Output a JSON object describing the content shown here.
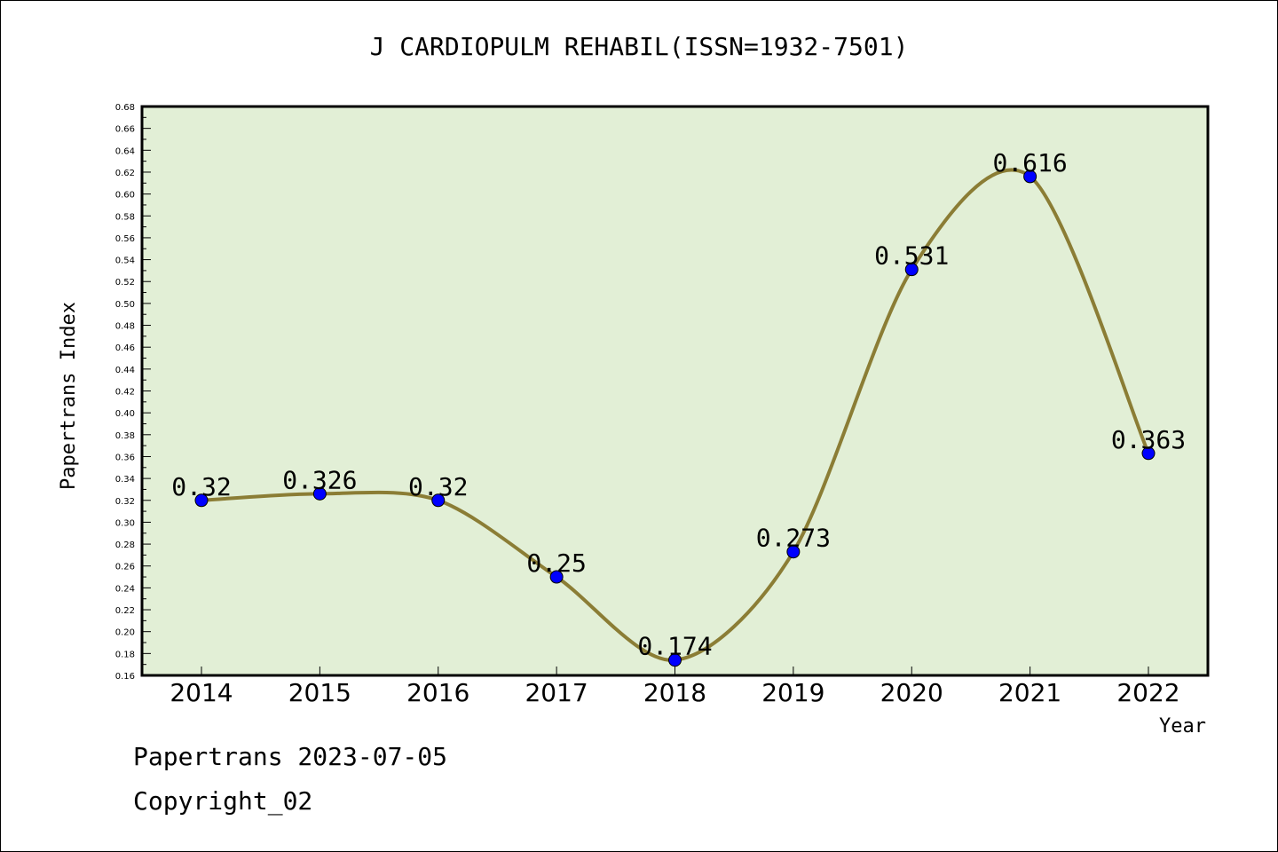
{
  "chart_data": {
    "type": "line",
    "title": "J CARDIOPULM REHABIL(ISSN=1932-7501)",
    "xlabel": "Year",
    "ylabel": "Papertrans Index",
    "categories": [
      "2014",
      "2015",
      "2016",
      "2017",
      "2018",
      "2019",
      "2020",
      "2021",
      "2022"
    ],
    "values": [
      0.32,
      0.326,
      0.32,
      0.25,
      0.174,
      0.273,
      0.531,
      0.616,
      0.363
    ],
    "data_labels": [
      "0.32",
      "0.326",
      "0.32",
      "0.25",
      "0.174",
      "0.273",
      "0.531",
      "0.616",
      "0.363"
    ],
    "ylim": [
      0.16,
      0.68
    ],
    "yticks": [
      "0.16",
      "0.18",
      "0.20",
      "0.22",
      "0.24",
      "0.26",
      "0.28",
      "0.30",
      "0.32",
      "0.34",
      "0.36",
      "0.38",
      "0.40",
      "0.42",
      "0.44",
      "0.46",
      "0.48",
      "0.50",
      "0.52",
      "0.54",
      "0.56",
      "0.58",
      "0.60",
      "0.62",
      "0.64",
      "0.66",
      "0.68"
    ],
    "grid": false,
    "colors": {
      "line": "#8b7d35",
      "marker": "#0000ff",
      "plot_bg": "#e2efd6"
    }
  },
  "footer": {
    "date_text": "Papertrans 2023-07-05",
    "copyright_text": "Copyright_02"
  }
}
